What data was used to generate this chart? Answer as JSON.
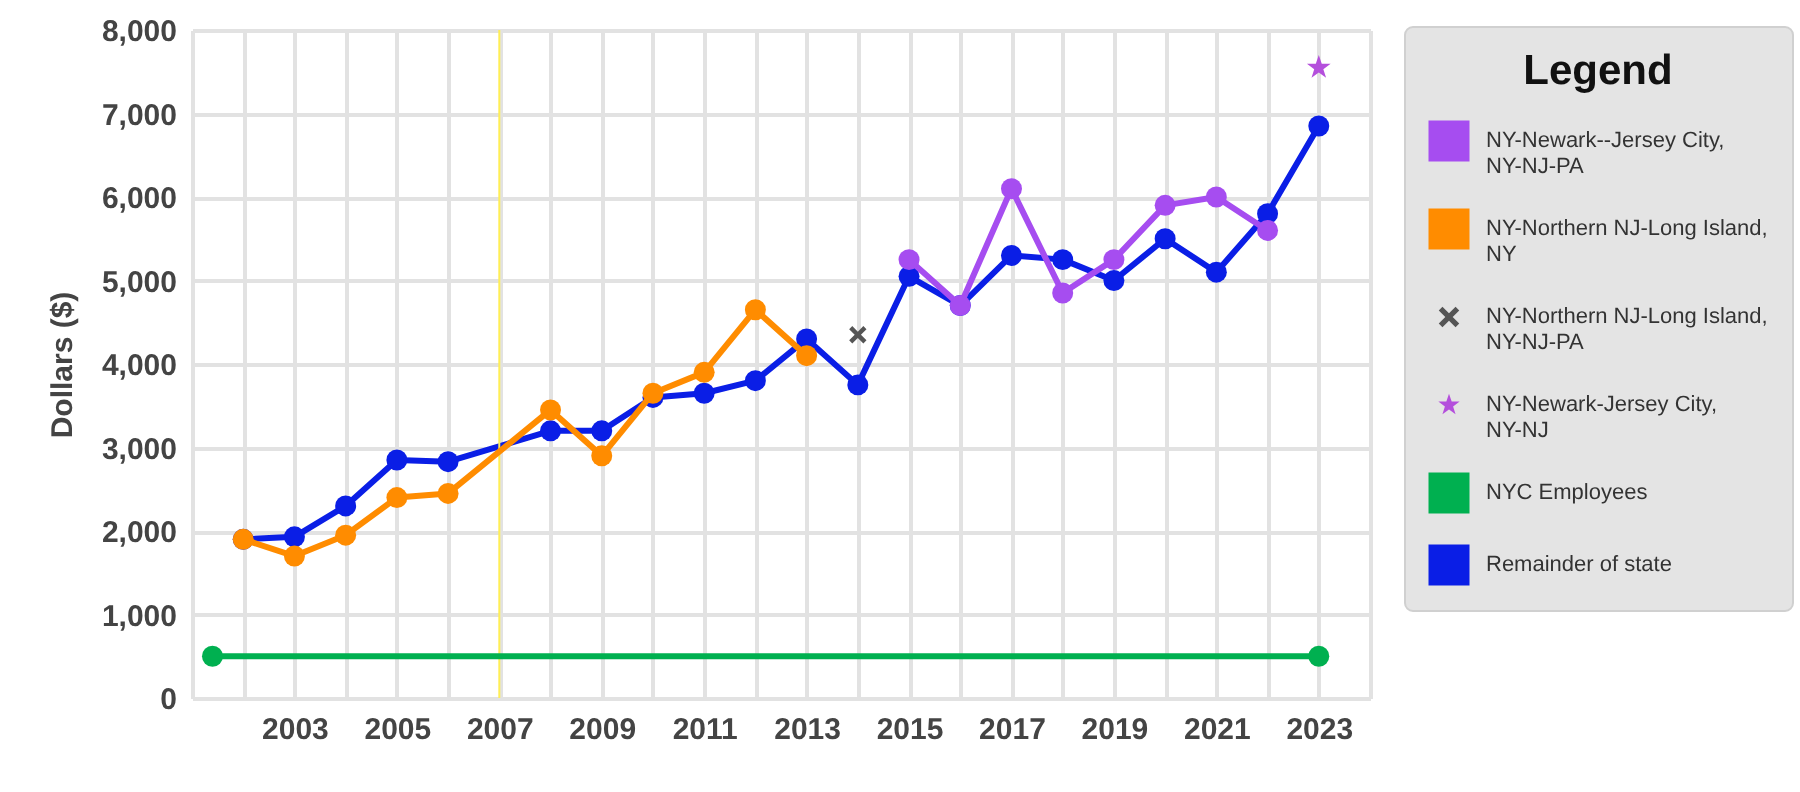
{
  "chart_data": {
    "type": "line",
    "ylabel": "Dollars ($)",
    "legend_title": "Legend",
    "legend": "right",
    "grid": true,
    "line_style": "solid",
    "xlim": [
      2001,
      2024
    ],
    "xticks": [
      {
        "value": 2001,
        "label": null
      },
      {
        "value": 2002,
        "label": null
      },
      2003,
      {
        "value": 2004,
        "label": null
      },
      2005,
      {
        "value": 2006,
        "label": null
      },
      2007,
      {
        "value": 2008,
        "label": null
      },
      2009,
      {
        "value": 2010,
        "label": null
      },
      2011,
      {
        "value": 2012,
        "label": null
      },
      2013,
      {
        "value": 2014,
        "label": null
      },
      2015,
      {
        "value": 2016,
        "label": null
      },
      2017,
      {
        "value": 2018,
        "label": null
      },
      2019,
      {
        "value": 2020,
        "label": null
      },
      2021,
      {
        "value": 2022,
        "label": null
      },
      2023,
      {
        "value": 2024,
        "label": null
      }
    ],
    "ylim": [
      0,
      8000
    ],
    "yticks": [
      0,
      {
        "value": 1000,
        "label": "1,000"
      },
      {
        "value": 2000,
        "label": "2,000"
      },
      {
        "value": 3000,
        "label": "3,000"
      },
      {
        "value": 4000,
        "label": "4,000"
      },
      {
        "value": 5000,
        "label": "5,000"
      },
      {
        "value": 6000,
        "label": "6,000"
      },
      {
        "value": 7000,
        "label": "7,000"
      },
      {
        "value": 8000,
        "label": "8,000"
      }
    ],
    "ref_lines": [
      {
        "axis": "x",
        "value": 2007,
        "color": "#ffee55"
      }
    ],
    "series": [
      {
        "name": "NY-Newark--Jersey City, NY-NJ-PA",
        "type": "line",
        "marker": "circle",
        "color": "#a64df0",
        "x": [
          2015,
          2016,
          2017,
          2018,
          2019,
          2020,
          2021,
          2022
        ],
        "values": [
          5250,
          4700,
          6100,
          4850,
          5250,
          5900,
          6000,
          5600
        ]
      },
      {
        "name": "NY-Northern NJ-Long Island, NY",
        "type": "line",
        "marker": "circle",
        "color": "#ff8c00",
        "x": [
          2002,
          2003,
          2004,
          2005,
          2006,
          2008,
          2009,
          2010,
          2011,
          2012,
          2013
        ],
        "values": [
          1900,
          1700,
          1950,
          2400,
          2450,
          3450,
          2900,
          3650,
          3900,
          4650,
          4100
        ]
      },
      {
        "name": "NY-Northern NJ-Long Island, NY-NJ-PA",
        "type": "scatter",
        "marker": "cross",
        "color": "#555555",
        "x": [
          2014
        ],
        "values": [
          4350
        ]
      },
      {
        "name": "NY-Newark-Jersey City, NY-NJ",
        "type": "scatter",
        "marker": "star",
        "color": "#b44fdc",
        "x": [
          2023
        ],
        "values": [
          7550
        ]
      },
      {
        "name": "NYC Employees",
        "type": "line",
        "marker": "circle",
        "color": "#00b050",
        "x": [
          2001.4,
          2023
        ],
        "values": [
          500,
          500
        ]
      },
      {
        "name": "Remainder of state",
        "type": "line",
        "marker": "circle",
        "color": "#0a1ee6",
        "x": [
          2002,
          2003,
          2004,
          2005,
          2006,
          2008,
          2009,
          2010,
          2011,
          2012,
          2013,
          2014,
          2015,
          2016,
          2017,
          2018,
          2019,
          2020,
          2021,
          2022,
          2023
        ],
        "values": [
          1900,
          1930,
          2300,
          2850,
          2830,
          3200,
          3200,
          3600,
          3650,
          3800,
          4300,
          3750,
          5050,
          4700,
          5300,
          5250,
          5000,
          5500,
          5100,
          5800,
          6850
        ]
      }
    ]
  }
}
